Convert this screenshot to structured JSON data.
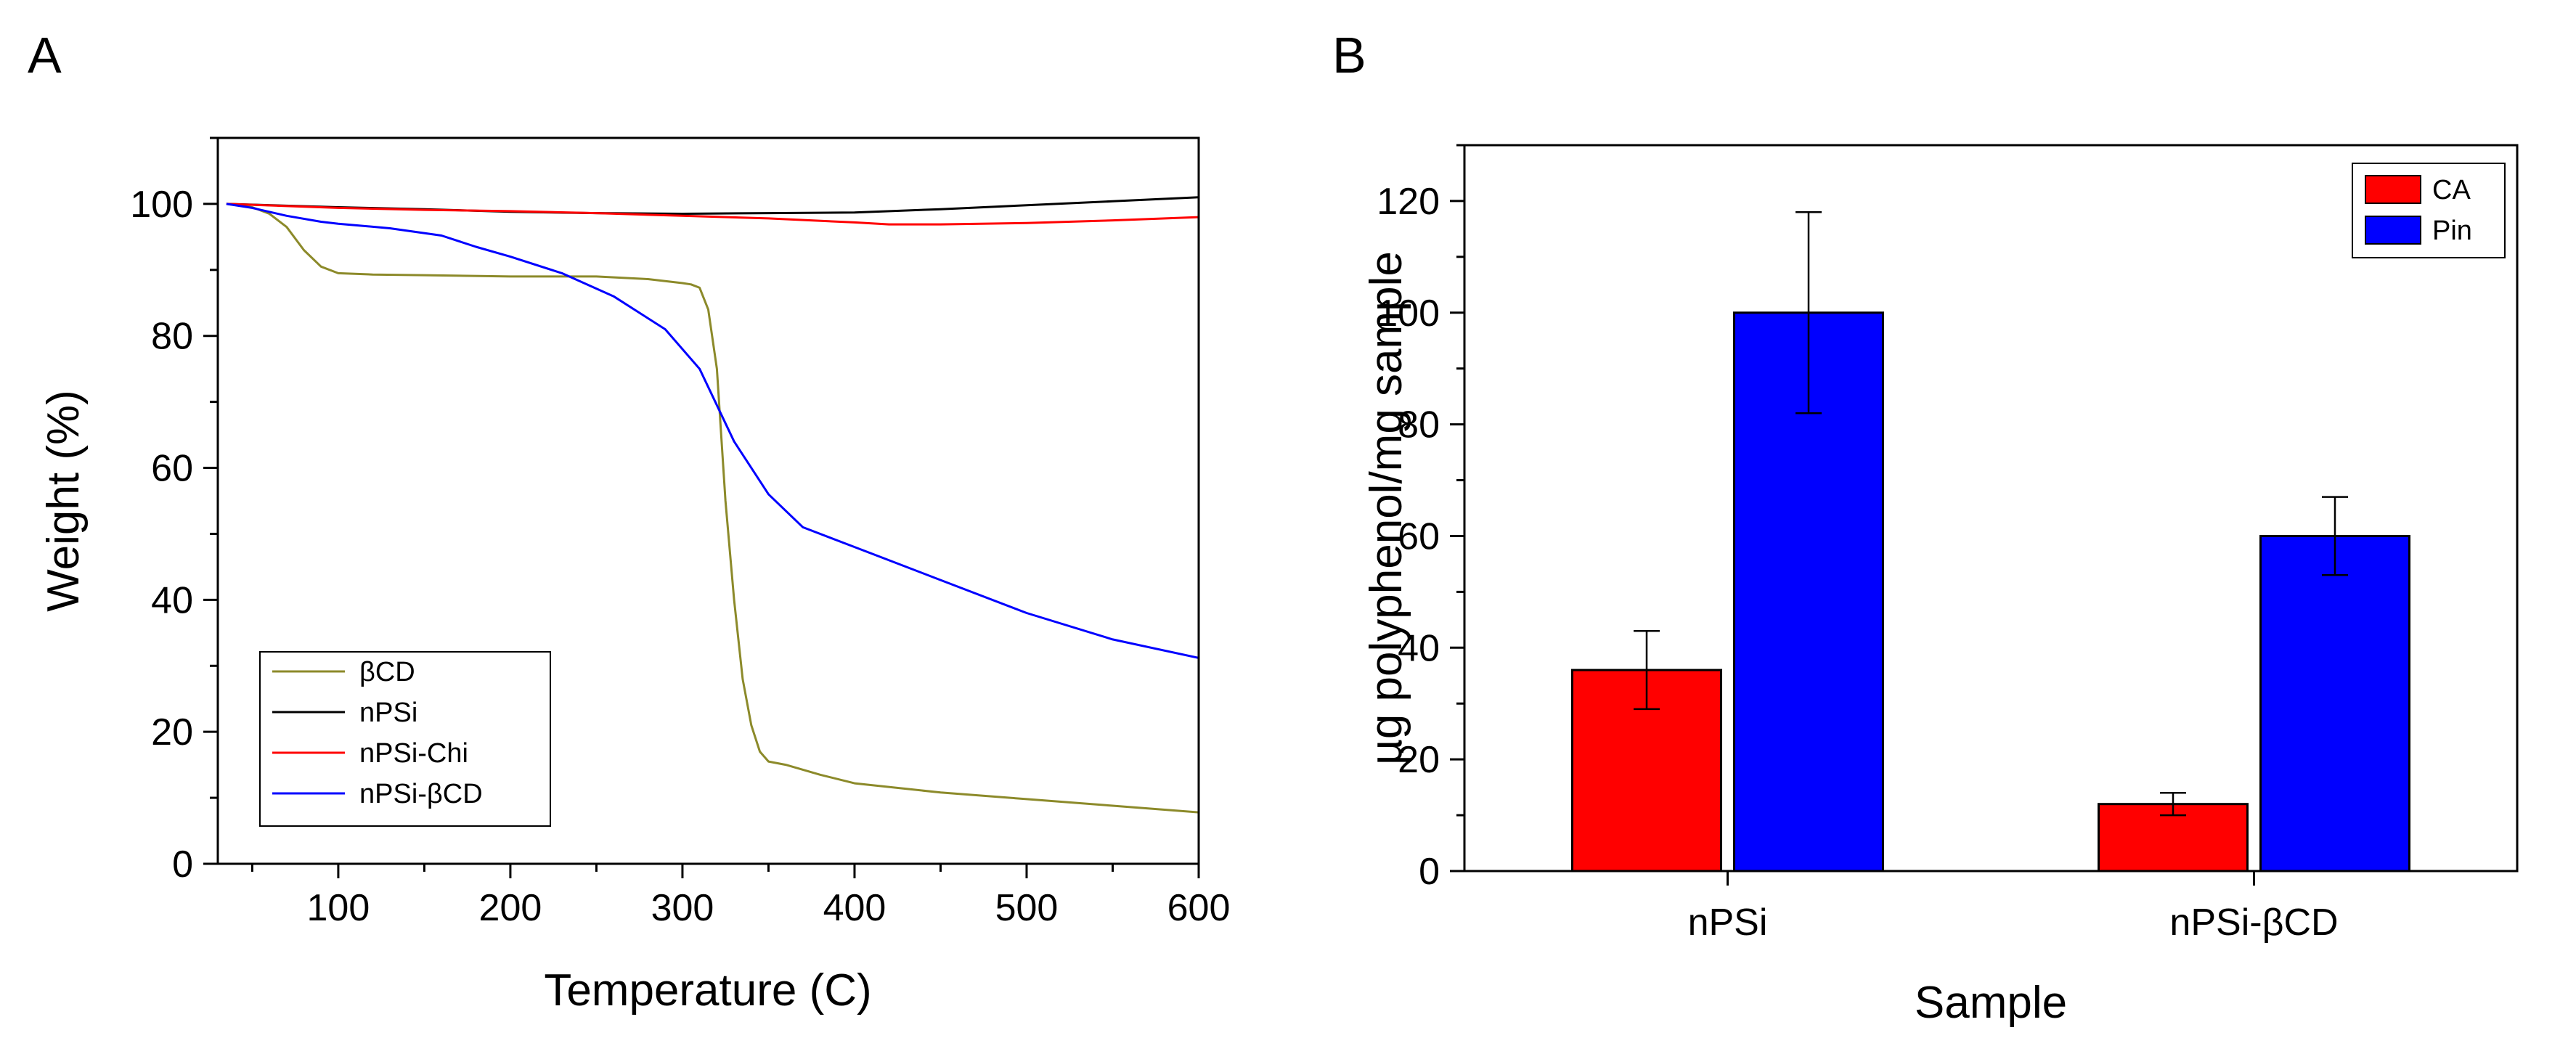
{
  "chart_data": [
    {
      "panel": "A",
      "type": "line",
      "title": "",
      "xlabel": "Temperature (C)",
      "ylabel": "Weight (%)",
      "xlim": [
        30,
        600
      ],
      "ylim": [
        0,
        110
      ],
      "xticks": [
        100,
        200,
        300,
        400,
        500,
        600
      ],
      "yticks": [
        0,
        20,
        40,
        60,
        80,
        100
      ],
      "grid": false,
      "legend_position": "bottom-left",
      "series": [
        {
          "name": "βCD",
          "color": "#8c8a2a",
          "x": [
            35,
            50,
            60,
            70,
            80,
            90,
            100,
            120,
            150,
            200,
            250,
            280,
            300,
            305,
            310,
            315,
            320,
            325,
            330,
            335,
            340,
            345,
            350,
            360,
            380,
            400,
            450,
            500,
            550,
            600
          ],
          "y": [
            100,
            99.5,
            98.5,
            96.5,
            93,
            90.5,
            89.5,
            89.3,
            89.2,
            89,
            89,
            88.6,
            88,
            87.8,
            87.3,
            84,
            75,
            55,
            40,
            28,
            21,
            17,
            15.5,
            15,
            13.5,
            12.2,
            10.8,
            9.8,
            8.8,
            7.8
          ]
        },
        {
          "name": "nPSi",
          "color": "#000000",
          "x": [
            35,
            100,
            150,
            200,
            250,
            300,
            350,
            400,
            450,
            500,
            550,
            600
          ],
          "y": [
            100,
            99.5,
            99.2,
            98.8,
            98.6,
            98.5,
            98.6,
            98.7,
            99.2,
            99.8,
            100.4,
            101
          ]
        },
        {
          "name": "nPSi-Chi",
          "color": "#ff0000",
          "x": [
            35,
            100,
            150,
            200,
            250,
            300,
            350,
            400,
            420,
            450,
            500,
            550,
            600
          ],
          "y": [
            100,
            99.4,
            99.1,
            98.9,
            98.6,
            98.2,
            97.8,
            97.2,
            96.9,
            96.9,
            97.1,
            97.5,
            98
          ]
        },
        {
          "name": "nPSi-βCD",
          "color": "#0000ff",
          "x": [
            35,
            50,
            70,
            90,
            100,
            130,
            160,
            180,
            200,
            230,
            260,
            290,
            310,
            330,
            350,
            370,
            400,
            450,
            500,
            550,
            600
          ],
          "y": [
            100,
            99.4,
            98.2,
            97.3,
            97,
            96.3,
            95.2,
            93.5,
            92,
            89.5,
            86,
            81,
            75,
            64,
            56,
            51,
            48,
            43,
            38,
            34,
            31.2
          ]
        }
      ]
    },
    {
      "panel": "B",
      "type": "bar",
      "title": "",
      "xlabel": "Sample",
      "ylabel": "µg polyphenol/mg sample",
      "ylim": [
        0,
        130
      ],
      "yticks": [
        0,
        20,
        40,
        60,
        80,
        100,
        120
      ],
      "grid": false,
      "legend_position": "top-right",
      "categories": [
        "nPSi",
        "nPSi-βCD"
      ],
      "series": [
        {
          "name": "CA",
          "color": "#ff0000",
          "values": [
            36,
            12
          ],
          "errors": [
            7,
            2
          ]
        },
        {
          "name": "Pin",
          "color": "#0000ff",
          "values": [
            100,
            60
          ],
          "errors": [
            18,
            7
          ]
        }
      ]
    }
  ]
}
